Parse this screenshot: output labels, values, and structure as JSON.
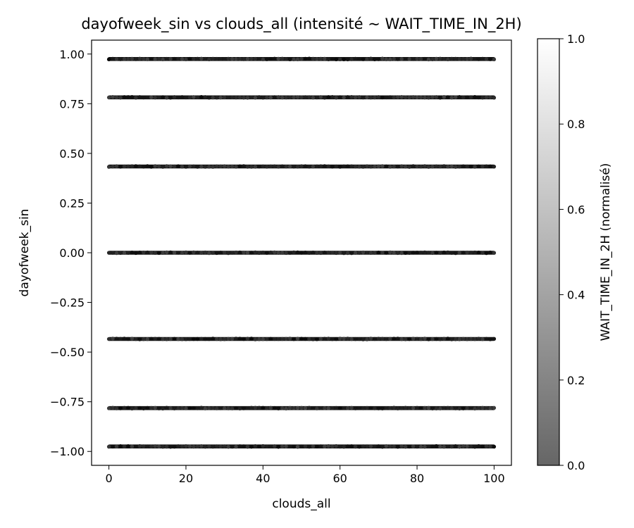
{
  "chart_data": {
    "type": "scatter",
    "title": "dayofweek_sin vs clouds_all (intensité ~ WAIT_TIME_IN_2H)",
    "xlabel": "clouds_all",
    "ylabel": "dayofweek_sin",
    "xlim": [
      -4.5,
      104.5
    ],
    "ylim": [
      -1.07,
      1.07
    ],
    "x_ticks": [
      0,
      20,
      40,
      60,
      80,
      100
    ],
    "x_tick_labels": [
      "0",
      "20",
      "40",
      "60",
      "80",
      "100"
    ],
    "y_ticks": [
      1.0,
      0.75,
      0.5,
      0.25,
      0.0,
      -0.25,
      -0.5,
      -0.75,
      -1.0
    ],
    "y_tick_labels": [
      "1.00",
      "0.75",
      "0.50",
      "0.25",
      "0.00",
      "−0.25",
      "−0.50",
      "−0.75",
      "−1.00"
    ],
    "x_range": [
      0,
      100
    ],
    "y_levels": [
      0.975,
      0.782,
      0.434,
      0.0,
      -0.434,
      -0.782,
      -0.975
    ],
    "colorbar": {
      "label": "WAIT_TIME_IN_2H (normalisé)",
      "range": [
        0.0,
        1.0
      ],
      "ticks": [
        0.0,
        0.2,
        0.4,
        0.6,
        0.8,
        1.0
      ],
      "tick_labels": [
        "0.0",
        "0.2",
        "0.4",
        "0.6",
        "0.8",
        "1.0"
      ],
      "colormap": "gray",
      "alpha": 0.6
    },
    "grid": false,
    "marker_color_typical": "#1a1a1a"
  }
}
